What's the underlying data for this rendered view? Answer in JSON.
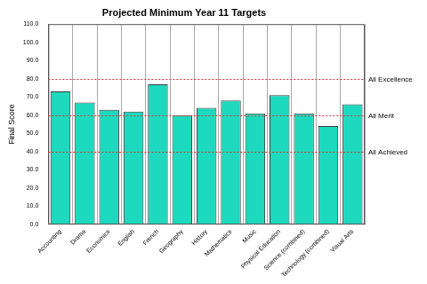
{
  "chart_data": {
    "type": "bar",
    "title": "Projected Minimum Year 11 Targets",
    "y_label": "Final Score",
    "categories": [
      "Accounting",
      "Drama",
      "Economics",
      "English",
      "French",
      "Geography",
      "History",
      "Mathematics",
      "Music",
      "Physical Education",
      "Science (combined)",
      "Technology (combined)",
      "Visual Arts"
    ],
    "values": [
      73,
      67,
      63,
      62,
      77,
      60,
      64,
      68,
      61,
      71,
      61,
      54,
      66
    ],
    "color": "#1dd9be",
    "ylim": [
      0,
      110
    ],
    "yticks": [
      {
        "value": 0,
        "label": "0.0"
      },
      {
        "value": 10,
        "label": "10.0"
      },
      {
        "value": 20,
        "label": "20.0"
      },
      {
        "value": 30,
        "label": "30.0"
      },
      {
        "value": 40,
        "label": "40.0"
      },
      {
        "value": 50,
        "label": "50.0"
      },
      {
        "value": 60,
        "label": "60.0"
      },
      {
        "value": 70,
        "label": "70.0"
      },
      {
        "value": 80,
        "label": "80.0"
      },
      {
        "value": 90,
        "label": "90.0"
      },
      {
        "value": 100,
        "label": "100.0"
      },
      {
        "value": 110,
        "label": "110.0"
      }
    ],
    "annotations": [
      {
        "value": 80,
        "label": "All Excellence"
      },
      {
        "value": 60,
        "label": "All Merit"
      },
      {
        "value": 40,
        "label": "All Achieved"
      }
    ],
    "grid": true
  }
}
